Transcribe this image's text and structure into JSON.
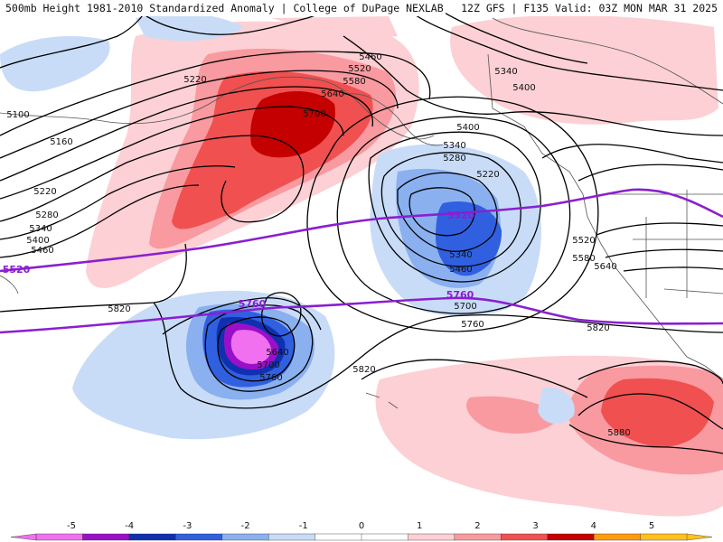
{
  "header": {
    "title_left": "500mb Height 1981-2010 Standardized Anomaly | College of DuPage NEXLAB",
    "title_right": "12Z GFS | F135 Valid: 03Z MON MAR 31 2025"
  },
  "contour_labels": [
    {
      "id": "5460-a",
      "text": "5460"
    },
    {
      "id": "5520-a",
      "text": "5520"
    },
    {
      "id": "5580-a",
      "text": "5580"
    },
    {
      "id": "5640-a",
      "text": "5640"
    },
    {
      "id": "5700-a",
      "text": "5700"
    },
    {
      "id": "5220-a",
      "text": "5220"
    },
    {
      "id": "5100",
      "text": "5100"
    },
    {
      "id": "5160",
      "text": "5160"
    },
    {
      "id": "5220-b",
      "text": "5220"
    },
    {
      "id": "5280-a",
      "text": "5280"
    },
    {
      "id": "5340-a",
      "text": "5340"
    },
    {
      "id": "5400-a",
      "text": "5400"
    },
    {
      "id": "5460-b",
      "text": "5460"
    },
    {
      "id": "5340-b",
      "text": "5340"
    },
    {
      "id": "5400-b",
      "text": "5400"
    },
    {
      "id": "5400-c",
      "text": "5400"
    },
    {
      "id": "5340-c",
      "text": "5340"
    },
    {
      "id": "5280-b",
      "text": "5280"
    },
    {
      "id": "5220-c",
      "text": "5220"
    },
    {
      "id": "5340-d",
      "text": "5340"
    },
    {
      "id": "5460-c",
      "text": "5460"
    },
    {
      "id": "5520-b",
      "text": "5520"
    },
    {
      "id": "5580-b",
      "text": "5580"
    },
    {
      "id": "5640-b",
      "text": "5640"
    },
    {
      "id": "5700-b",
      "text": "5700"
    },
    {
      "id": "5760-a",
      "text": "5760"
    },
    {
      "id": "5820-a",
      "text": "5820"
    },
    {
      "id": "5820-b",
      "text": "5820"
    },
    {
      "id": "5820-c",
      "text": "5820"
    },
    {
      "id": "5640-c",
      "text": "5640"
    },
    {
      "id": "5700-c",
      "text": "5700"
    },
    {
      "id": "5760-b",
      "text": "5760"
    },
    {
      "id": "5880",
      "text": "5880"
    }
  ],
  "highlight_labels": [
    {
      "id": "p5520-a",
      "text": "5520"
    },
    {
      "id": "p5520-b",
      "text": "5520"
    },
    {
      "id": "p5760-a",
      "text": "5760"
    },
    {
      "id": "p5760-b",
      "text": "5760"
    }
  ],
  "colorbar": {
    "ticks": [
      "-5",
      "-4",
      "-3",
      "-2",
      "-1",
      "0",
      "1",
      "2",
      "3",
      "4",
      "5"
    ],
    "colors": [
      "#f070f0",
      "#9a10c8",
      "#1030b0",
      "#3060e0",
      "#8ab0f0",
      "#c8dcf8",
      "#ffffff",
      "#ffffff",
      "#fcd0d4",
      "#f89aa0",
      "#f05050",
      "#c40000",
      "#ff9a10",
      "#ffc020"
    ]
  },
  "colors": {
    "highlight_contour": "#8a1fd0",
    "contour": "#000000",
    "coast": "#555555"
  }
}
